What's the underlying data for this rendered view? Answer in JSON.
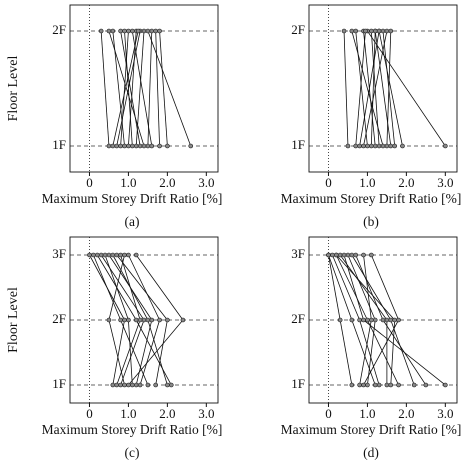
{
  "chart_data": [
    {
      "type": "line",
      "caption": "(a)",
      "ylabel": "Floor Level",
      "xlabel": "Maximum Storey Drift Ratio [%]",
      "categories": [
        "1F",
        "2F"
      ],
      "color": "#111111",
      "marker_color": "#888888",
      "xlim": [
        -0.5,
        3.3
      ],
      "xticks": [
        0,
        {
          "value": 1,
          "label": "1.0"
        },
        {
          "value": 2,
          "label": "2.0"
        },
        {
          "value": 3,
          "label": "3.0"
        }
      ],
      "series": [
        {
          "values": [
            0.5,
            0.3
          ]
        },
        {
          "values": [
            0.7,
            1.3
          ]
        },
        {
          "values": [
            0.9,
            0.6
          ]
        },
        {
          "values": [
            1.0,
            1.2
          ]
        },
        {
          "values": [
            1.1,
            0.9
          ]
        },
        {
          "values": [
            1.2,
            1.4
          ]
        },
        {
          "values": [
            1.3,
            0.8
          ]
        },
        {
          "values": [
            1.5,
            1.6
          ]
        },
        {
          "values": [
            1.6,
            1.1
          ]
        },
        {
          "values": [
            2.0,
            1.8
          ]
        },
        {
          "values": [
            2.6,
            1.5
          ]
        },
        {
          "values": [
            0.8,
            1.0
          ]
        },
        {
          "values": [
            1.4,
            0.5
          ]
        },
        {
          "values": [
            1.8,
            1.7
          ]
        },
        {
          "values": [
            0.6,
            1.25
          ]
        }
      ]
    },
    {
      "type": "line",
      "caption": "(b)",
      "xlabel": "Maximum Storey Drift Ratio [%]",
      "categories": [
        "1F",
        "2F"
      ],
      "color": "#111111",
      "marker_color": "#888888",
      "xlim": [
        -0.5,
        3.3
      ],
      "xticks": [
        0,
        {
          "value": 1,
          "label": "1.0"
        },
        {
          "value": 2,
          "label": "2.0"
        },
        {
          "value": 3,
          "label": "3.0"
        }
      ],
      "series": [
        {
          "values": [
            0.5,
            0.4
          ]
        },
        {
          "values": [
            0.8,
            1.3
          ]
        },
        {
          "values": [
            1.0,
            0.7
          ]
        },
        {
          "values": [
            1.1,
            1.2
          ]
        },
        {
          "values": [
            1.2,
            0.9
          ]
        },
        {
          "values": [
            1.3,
            1.1
          ]
        },
        {
          "values": [
            1.5,
            1.6
          ]
        },
        {
          "values": [
            1.7,
            1.4
          ]
        },
        {
          "values": [
            3.0,
            1.0
          ]
        },
        {
          "values": [
            0.9,
            1.5
          ]
        },
        {
          "values": [
            1.4,
            0.6
          ]
        },
        {
          "values": [
            1.9,
            1.3
          ]
        },
        {
          "values": [
            0.7,
            0.95
          ]
        },
        {
          "values": [
            1.6,
            1.2
          ]
        }
      ]
    },
    {
      "type": "line",
      "caption": "(c)",
      "ylabel": "Floor Level",
      "xlabel": "Maximum Storey Drift Ratio [%]",
      "categories": [
        "1F",
        "2F",
        "3F"
      ],
      "color": "#111111",
      "marker_color": "#888888",
      "xlim": [
        -0.5,
        3.3
      ],
      "xticks": [
        0,
        {
          "value": 1,
          "label": "1.0"
        },
        {
          "value": 2,
          "label": "2.0"
        },
        {
          "value": 3,
          "label": "3.0"
        }
      ],
      "series": [
        {
          "values": [
            0.6,
            0.9,
            0.0
          ]
        },
        {
          "values": [
            0.8,
            1.4,
            0.3
          ]
        },
        {
          "values": [
            1.0,
            2.4,
            1.2
          ]
        },
        {
          "values": [
            1.2,
            1.6,
            0.5
          ]
        },
        {
          "values": [
            1.5,
            0.8,
            0.1
          ]
        },
        {
          "values": [
            1.7,
            2.0,
            0.7
          ]
        },
        {
          "values": [
            2.1,
            1.2,
            0.2
          ]
        },
        {
          "values": [
            0.9,
            0.5,
            0.9
          ]
        },
        {
          "values": [
            1.3,
            1.8,
            1.0
          ]
        },
        {
          "values": [
            1.1,
            1.0,
            0.4
          ]
        },
        {
          "values": [
            2.0,
            1.5,
            0.6
          ]
        },
        {
          "values": [
            0.7,
            1.3,
            0.8
          ]
        }
      ]
    },
    {
      "type": "line",
      "caption": "(d)",
      "xlabel": "Maximum Storey Drift Ratio [%]",
      "categories": [
        "1F",
        "2F",
        "3F"
      ],
      "color": "#111111",
      "marker_color": "#888888",
      "xlim": [
        -0.5,
        3.3
      ],
      "xticks": [
        0,
        {
          "value": 1,
          "label": "1.0"
        },
        {
          "value": 2,
          "label": "2.0"
        },
        {
          "value": 3,
          "label": "3.0"
        }
      ],
      "series": [
        {
          "values": [
            0.6,
            0.3,
            0.0
          ]
        },
        {
          "values": [
            0.9,
            1.8,
            1.1
          ]
        },
        {
          "values": [
            1.0,
            1.2,
            0.5
          ]
        },
        {
          "values": [
            1.3,
            0.8,
            0.1
          ]
        },
        {
          "values": [
            1.5,
            1.5,
            0.3
          ]
        },
        {
          "values": [
            1.8,
            1.0,
            0.2
          ]
        },
        {
          "values": [
            2.2,
            1.6,
            0.6
          ]
        },
        {
          "values": [
            3.0,
            0.9,
            0.4
          ]
        },
        {
          "values": [
            2.5,
            1.4,
            0.7
          ]
        },
        {
          "values": [
            1.2,
            0.6,
            0.0
          ]
        },
        {
          "values": [
            0.8,
            1.1,
            0.9
          ]
        },
        {
          "values": [
            1.6,
            1.7,
            0.2
          ]
        }
      ]
    }
  ]
}
